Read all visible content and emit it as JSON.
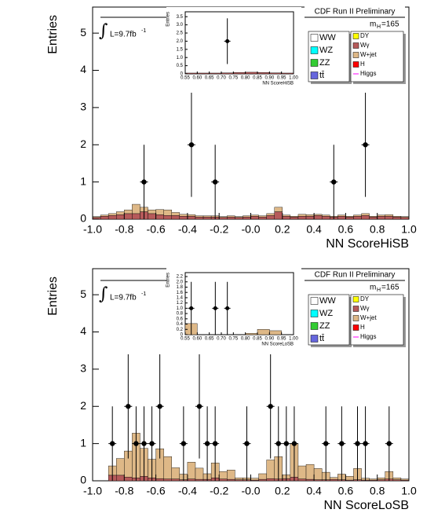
{
  "chart_data": [
    {
      "type": "histogram",
      "title": "CDF Run II Preliminary",
      "xlabel": "NN ScoreHiSB",
      "ylabel": "Entries",
      "lumi_symbol": "∫",
      "lumi": "L=9.7fb",
      "lumi_sup": "-1",
      "mass": "m",
      "mass_sub": "H",
      "mass_value": "=165",
      "xlim": [
        -1,
        1
      ],
      "ylim": [
        0,
        5.7
      ],
      "xticks": [
        {
          "value": -1,
          "label": "-1.0"
        },
        -0.8,
        -0.6,
        -0.4,
        -0.2,
        {
          "value": 0,
          "label": "-0.0"
        },
        0.2,
        0.4,
        0.6,
        0.8,
        {
          "value": 1,
          "label": "1.0"
        }
      ],
      "yticks": [
        0,
        1,
        2,
        3,
        4,
        5
      ],
      "bins": [
        -1,
        -0.95,
        -0.9,
        -0.85,
        -0.8,
        -0.75,
        -0.7,
        -0.65,
        -0.6,
        -0.55,
        -0.5,
        -0.45,
        -0.4,
        -0.35,
        -0.3,
        -0.25,
        -0.2,
        -0.15,
        -0.1,
        -0.05,
        0,
        0.05,
        0.1,
        0.15,
        0.2,
        0.25,
        0.3,
        0.35,
        0.4,
        0.45,
        0.5,
        0.55,
        0.6,
        0.65,
        0.7,
        0.75,
        0.8,
        0.85,
        0.9,
        0.95,
        1
      ],
      "series": [
        {
          "name": "WW",
          "color": "#ffffff"
        },
        {
          "name": "WZ",
          "color": "#00ffff"
        },
        {
          "name": "ZZ",
          "color": "#33cc33"
        },
        {
          "name": "tt̄",
          "color": "#6666dd"
        },
        {
          "name": "DY",
          "color": "#ffff00"
        },
        {
          "name": "Wγ",
          "color": "#b65a5a",
          "values": [
            0.05,
            0.08,
            0.1,
            0.12,
            0.15,
            0.15,
            0.2,
            0.15,
            0.12,
            0.1,
            0.1,
            0.08,
            0.08,
            0.06,
            0.06,
            0.06,
            0.05,
            0.06,
            0.05,
            0.06,
            0.08,
            0.06,
            0.1,
            0.2,
            0.08,
            0.06,
            0.08,
            0.08,
            0.1,
            0.08,
            0.06,
            0.08,
            0.06,
            0.08,
            0.1,
            0.06,
            0.08,
            0.08,
            0.06,
            0.05
          ]
        },
        {
          "name": "W+jet",
          "color": "#deb887",
          "values": [
            0.02,
            0.03,
            0.05,
            0.08,
            0.1,
            0.25,
            0.12,
            0.1,
            0.14,
            0.15,
            0.08,
            0.05,
            0.04,
            0.03,
            0.03,
            0.03,
            0.02,
            0.03,
            0.02,
            0.03,
            0.03,
            0.03,
            0.05,
            0.12,
            0.03,
            0.02,
            0.05,
            0.04,
            0.03,
            0.03,
            0.02,
            0.03,
            0.02,
            0.03,
            0.05,
            0.02,
            0.03,
            0.04,
            0.02,
            0.02
          ]
        },
        {
          "name": "H",
          "color": "#ff0000"
        },
        {
          "name": "Higgs",
          "color": "#ff00ff"
        }
      ],
      "data": {
        "x": [
          -0.675,
          -0.375,
          -0.225,
          0.525,
          0.725
        ],
        "values": [
          1,
          2,
          1,
          1,
          2
        ],
        "errors": [
          1,
          1.4,
          1,
          1,
          1.4
        ]
      },
      "inset": {
        "type": "histogram",
        "xlabel": "NN ScoreHiSB",
        "ylabel": "Entries",
        "xlim": [
          0.55,
          1
        ],
        "ylim": [
          0,
          3.8
        ],
        "xticks": [
          0.55,
          {
            "value": 0.6,
            "label": "0.60"
          },
          0.65,
          {
            "value": 0.7,
            "label": "0.70"
          },
          0.75,
          {
            "value": 0.8,
            "label": "0.80"
          },
          0.85,
          {
            "value": 0.9,
            "label": "0.90"
          },
          0.95,
          {
            "value": 1,
            "label": "1.00"
          }
        ],
        "yticks": [
          0,
          0.5,
          {
            "value": 1,
            "label": "1.0"
          },
          1.5,
          {
            "value": 2,
            "label": "2.0"
          },
          2.5,
          {
            "value": 3,
            "label": "3.0"
          },
          3.5
        ],
        "bins": [
          0.55,
          0.6,
          0.65,
          0.7,
          0.75,
          0.8,
          0.85,
          0.9,
          0.95,
          1
        ],
        "color": "#b65a5a",
        "values": [
          0.05,
          0.05,
          0.05,
          0.06,
          0.08,
          0.1,
          0.08,
          0.06,
          0.05
        ],
        "data": {
          "x": [
            0.725
          ],
          "values": [
            2
          ],
          "errors": [
            1.4
          ]
        }
      }
    },
    {
      "type": "histogram",
      "title": "CDF Run II Preliminary",
      "xlabel": "NN ScoreLoSB",
      "ylabel": "Entries",
      "lumi_symbol": "∫",
      "lumi": "L=9.7fb",
      "lumi_sup": "-1",
      "mass": "m",
      "mass_sub": "H",
      "mass_value": "=165",
      "xlim": [
        -1,
        1
      ],
      "ylim": [
        0,
        5.7
      ],
      "xticks": [
        {
          "value": -1,
          "label": "-1.0"
        },
        -0.8,
        -0.6,
        -0.4,
        -0.2,
        {
          "value": 0,
          "label": "-0.0"
        },
        0.2,
        0.4,
        0.6,
        0.8,
        {
          "value": 1,
          "label": "1.0"
        }
      ],
      "yticks": [
        0,
        1,
        2,
        3,
        4,
        5
      ],
      "bins": [
        -1,
        -0.95,
        -0.9,
        -0.85,
        -0.8,
        -0.75,
        -0.7,
        -0.65,
        -0.6,
        -0.55,
        -0.5,
        -0.45,
        -0.4,
        -0.35,
        -0.3,
        -0.25,
        -0.2,
        -0.15,
        -0.1,
        -0.05,
        0,
        0.05,
        0.1,
        0.15,
        0.2,
        0.25,
        0.3,
        0.35,
        0.4,
        0.45,
        0.5,
        0.55,
        0.6,
        0.65,
        0.7,
        0.75,
        0.8,
        0.85,
        0.9,
        0.95,
        1
      ],
      "series": [
        {
          "name": "WW",
          "color": "#ffffff"
        },
        {
          "name": "WZ",
          "color": "#00ffff"
        },
        {
          "name": "ZZ",
          "color": "#33cc33"
        },
        {
          "name": "tt̄",
          "color": "#6666dd"
        },
        {
          "name": "DY",
          "color": "#ffff00"
        },
        {
          "name": "Wγ",
          "color": "#b65a5a",
          "values": [
            0,
            0,
            0.15,
            0.15,
            0.1,
            0.08,
            0.12,
            0.08,
            0.06,
            0.05,
            0.05,
            0.03,
            0.05,
            0.04,
            0.04,
            0.08,
            0.05,
            0.04,
            0.03,
            0.03,
            0.02,
            0.04,
            0.06,
            0.05,
            0.06,
            0.1,
            0.05,
            0.04,
            0.03,
            0.03,
            0.04,
            0.03,
            0.02,
            0.03,
            0.02,
            0.02,
            0.03,
            0.05,
            0.03,
            0.02
          ]
        },
        {
          "name": "W+jet",
          "color": "#deb887",
          "values": [
            0,
            0,
            0.25,
            0.45,
            0.7,
            1.2,
            0.75,
            0.5,
            0.8,
            0.6,
            0.3,
            0.15,
            0.45,
            0.3,
            0.15,
            0.4,
            0.2,
            0.25,
            0.05,
            0.05,
            0.05,
            0.15,
            0.5,
            0.6,
            0.1,
            0.9,
            0.35,
            0.4,
            0.3,
            0.2,
            0.05,
            0.15,
            0.1,
            0.3,
            0.05,
            0.03,
            0.05,
            0.2,
            0.05,
            0.03
          ]
        },
        {
          "name": "H",
          "color": "#ff0000"
        },
        {
          "name": "Higgs",
          "color": "#ff00ff"
        }
      ],
      "data": {
        "x": [
          -0.875,
          -0.775,
          -0.725,
          -0.675,
          -0.625,
          -0.575,
          -0.425,
          -0.325,
          -0.275,
          -0.225,
          -0.025,
          0.125,
          0.175,
          0.225,
          0.275,
          0.475,
          0.575,
          0.675,
          0.725,
          0.875
        ],
        "values": [
          1,
          2,
          1,
          1,
          1,
          2,
          1,
          2,
          1,
          1,
          1,
          2,
          1,
          1,
          1,
          1,
          1,
          1,
          1,
          1
        ],
        "errors": [
          1,
          1.4,
          1,
          1,
          1,
          1.4,
          1,
          1.4,
          1,
          1,
          1,
          1.4,
          1,
          1,
          1,
          1,
          1,
          1,
          1,
          1
        ]
      },
      "inset": {
        "type": "histogram",
        "xlabel": "NN ScoreLoSB",
        "ylabel": "Entries",
        "xlim": [
          0.55,
          1
        ],
        "ylim": [
          0,
          2.35
        ],
        "xticks": [
          0.55,
          {
            "value": 0.6,
            "label": "0.60"
          },
          0.65,
          {
            "value": 0.7,
            "label": "0.70"
          },
          0.75,
          {
            "value": 0.8,
            "label": "0.80"
          },
          0.85,
          {
            "value": 0.9,
            "label": "0.90"
          },
          0.95,
          {
            "value": 1,
            "label": "1.00"
          }
        ],
        "yticks": [
          0,
          0.2,
          0.4,
          0.6,
          0.8,
          {
            "value": 1,
            "label": "1.0"
          },
          1.2,
          1.4,
          1.6,
          1.8,
          {
            "value": 2,
            "label": "2.0"
          },
          2.2
        ],
        "bins": [
          0.55,
          0.6,
          0.65,
          0.7,
          0.75,
          0.8,
          0.85,
          0.9,
          0.95,
          1
        ],
        "color": "#deb887",
        "values": [
          0.42,
          0,
          0,
          0,
          0,
          0.05,
          0.2,
          0.15,
          0
        ],
        "data": {
          "x": [
            0.575,
            0.675,
            0.725
          ],
          "values": [
            1,
            1,
            1
          ],
          "errors": [
            1,
            1,
            1
          ]
        }
      }
    }
  ]
}
